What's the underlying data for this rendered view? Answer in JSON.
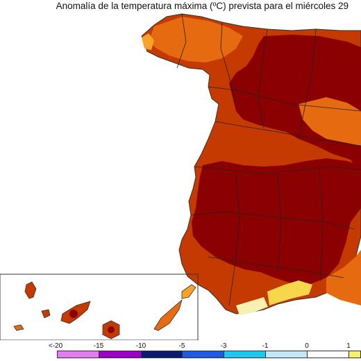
{
  "title": "Anomalía de la temperatura máxima (ºC) prevista para el miércoles 29",
  "colors": {
    "sea": "#ffffff",
    "anom_very_high": "#8b0000",
    "anom_high": "#c43a00",
    "anom_mid": "#e56a10",
    "anom_low": "#f7a22a",
    "anom_slight": "#f6d74a",
    "anom_neutral": "#f7f0b0",
    "border": "#222222",
    "coast": "#333333"
  },
  "legend": {
    "ticks": [
      "<-20",
      "-15",
      "-10",
      "-5",
      "-3",
      "-1",
      "0",
      "1"
    ],
    "swatches": [
      {
        "color": "#e07ef0"
      },
      {
        "color": "#9b00c8"
      },
      {
        "color": "#0a1a6e"
      },
      {
        "color": "#1f5be0"
      },
      {
        "color": "#1ec6f0"
      },
      {
        "color": "#c4e6f7"
      },
      {
        "color": "#ffffff"
      },
      {
        "color": "#f6f06a"
      }
    ]
  }
}
